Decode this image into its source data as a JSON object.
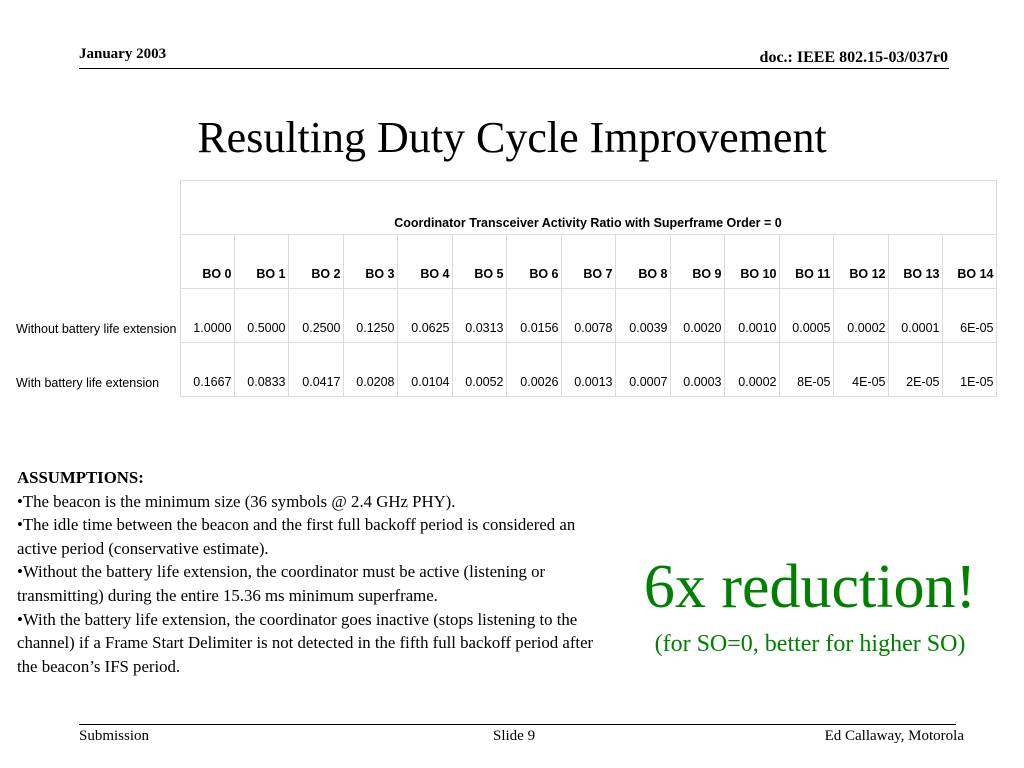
{
  "header": {
    "date": "January 2003",
    "doc": "doc.: IEEE 802.15-03/037r0"
  },
  "title": "Resulting Duty Cycle Improvement",
  "table": {
    "caption": "Coordinator Transceiver Activity Ratio with Superframe Order = 0",
    "columns": [
      "BO 0",
      "BO 1",
      "BO 2",
      "BO 3",
      "BO 4",
      "BO 5",
      "BO 6",
      "BO 7",
      "BO 8",
      "BO 9",
      "BO 10",
      "BO 11",
      "BO 12",
      "BO 13",
      "BO 14"
    ],
    "rows": [
      {
        "label": "Without battery life extension",
        "values": [
          "1.0000",
          "0.5000",
          "0.2500",
          "0.1250",
          "0.0625",
          "0.0313",
          "0.0156",
          "0.0078",
          "0.0039",
          "0.0020",
          "0.0010",
          "0.0005",
          "0.0002",
          "0.0001",
          "6E-05"
        ]
      },
      {
        "label": "With battery life extension",
        "values": [
          "0.1667",
          "0.0833",
          "0.0417",
          "0.0208",
          "0.0104",
          "0.0052",
          "0.0026",
          "0.0013",
          "0.0007",
          "0.0003",
          "0.0002",
          "8E-05",
          "4E-05",
          "2E-05",
          "1E-05"
        ]
      }
    ]
  },
  "assumptions": {
    "heading": "ASSUMPTIONS:",
    "items": [
      "•The beacon is the minimum size (36 symbols @ 2.4 GHz PHY).",
      "•The idle time between the beacon and the first full backoff period is considered an active period (conservative estimate).",
      "•Without the battery life extension, the coordinator must be active (listening or transmitting) during the entire 15.36 ms minimum superframe.",
      "•With the battery life extension, the coordinator goes inactive (stops listening to the channel) if a Frame Start Delimiter is not detected in the fifth full backoff period after the beacon’s IFS period."
    ]
  },
  "callout": {
    "main": "6x reduction!",
    "sub": "(for SO=0, better for higher SO)",
    "color": "#008000"
  },
  "footer": {
    "left": "Submission",
    "center": "Slide 9",
    "right": "Ed Callaway, Motorola"
  }
}
